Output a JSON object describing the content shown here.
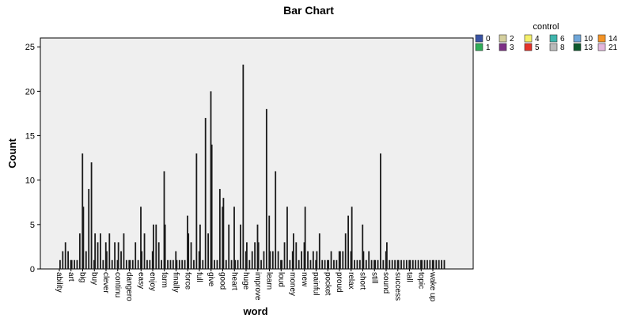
{
  "chart_data": {
    "type": "bar",
    "title": "Bar Chart",
    "xlabel": "word",
    "ylabel": "Count",
    "ylim": [
      0,
      26
    ],
    "yticks": [
      0,
      5,
      10,
      15,
      20,
      25
    ],
    "grid": false,
    "legend_position": "right",
    "legend": {
      "title": "control",
      "entries": [
        {
          "name": "0",
          "color": "#3953a4"
        },
        {
          "name": "2",
          "color": "#d4cf9e"
        },
        {
          "name": "4",
          "color": "#f5f06a"
        },
        {
          "name": "6",
          "color": "#3fb5ad"
        },
        {
          "name": "10",
          "color": "#6fa6d8"
        },
        {
          "name": "14",
          "color": "#f39325"
        },
        {
          "name": "1",
          "color": "#2eae57"
        },
        {
          "name": "3",
          "color": "#7d2f86"
        },
        {
          "name": "5",
          "color": "#e5332a"
        },
        {
          "name": "8",
          "color": "#b9b9b9"
        },
        {
          "name": "13",
          "color": "#0e5a2d"
        },
        {
          "name": "21",
          "color": "#e3b5dd"
        }
      ]
    },
    "categories": [
      "ability",
      "art",
      "big",
      "buy",
      "clever",
      "continu",
      "dangero",
      "easy",
      "enjoy",
      "farm",
      "finally",
      "force",
      "full",
      "give",
      "good",
      "heart",
      "huge",
      "improve",
      "learn",
      "loud",
      "money",
      "new",
      "painful",
      "pocket",
      "proud",
      "relax",
      "short",
      "still",
      "sound",
      "success",
      "tall",
      "topic",
      "wake up"
    ],
    "values": [
      [
        1,
        2,
        3,
        2,
        1
      ],
      [
        1,
        1,
        1,
        4,
        13
      ],
      [
        7,
        2,
        9,
        12,
        1
      ],
      [
        4,
        3,
        4,
        1,
        3
      ],
      [
        2,
        4,
        1,
        3,
        1
      ],
      [
        3,
        2,
        4,
        1,
        1
      ],
      [
        1,
        1,
        3,
        1,
        7
      ],
      [
        2,
        4,
        1,
        1,
        2
      ],
      [
        5,
        5,
        3,
        1,
        11
      ],
      [
        5,
        1,
        1,
        1,
        2
      ],
      [
        1,
        1,
        1,
        1,
        6
      ],
      [
        4,
        3,
        1,
        13,
        2
      ],
      [
        5,
        1,
        17,
        4,
        20
      ],
      [
        14,
        1,
        1,
        9,
        7
      ],
      [
        8,
        1,
        5,
        1,
        7
      ],
      [
        1,
        1,
        5,
        23,
        2
      ],
      [
        3,
        1,
        2,
        3,
        5
      ],
      [
        3,
        1,
        2,
        18,
        6
      ],
      [
        2,
        2,
        11,
        2,
        1
      ],
      [
        1,
        3,
        7,
        1,
        2
      ],
      [
        4,
        3,
        1,
        2,
        3
      ],
      [
        7,
        2,
        1,
        2,
        1
      ],
      [
        2,
        4,
        1,
        1,
        1
      ],
      [
        1,
        2,
        1,
        1,
        2
      ],
      [
        2,
        2,
        4,
        6,
        2
      ],
      [
        7,
        1,
        1,
        1,
        5
      ],
      [
        2,
        1,
        2,
        1,
        1
      ],
      [
        1,
        1,
        13,
        1,
        2
      ],
      [
        3,
        1,
        1,
        1,
        1
      ],
      [
        1,
        1,
        1,
        1,
        1
      ],
      [
        1,
        1,
        1,
        1,
        1
      ],
      [
        1,
        1,
        1,
        1,
        1
      ],
      [
        1,
        1,
        1,
        1,
        1
      ]
    ]
  },
  "colors": {
    "plot_background": "#efefef",
    "bar": "#1a1a1a"
  }
}
